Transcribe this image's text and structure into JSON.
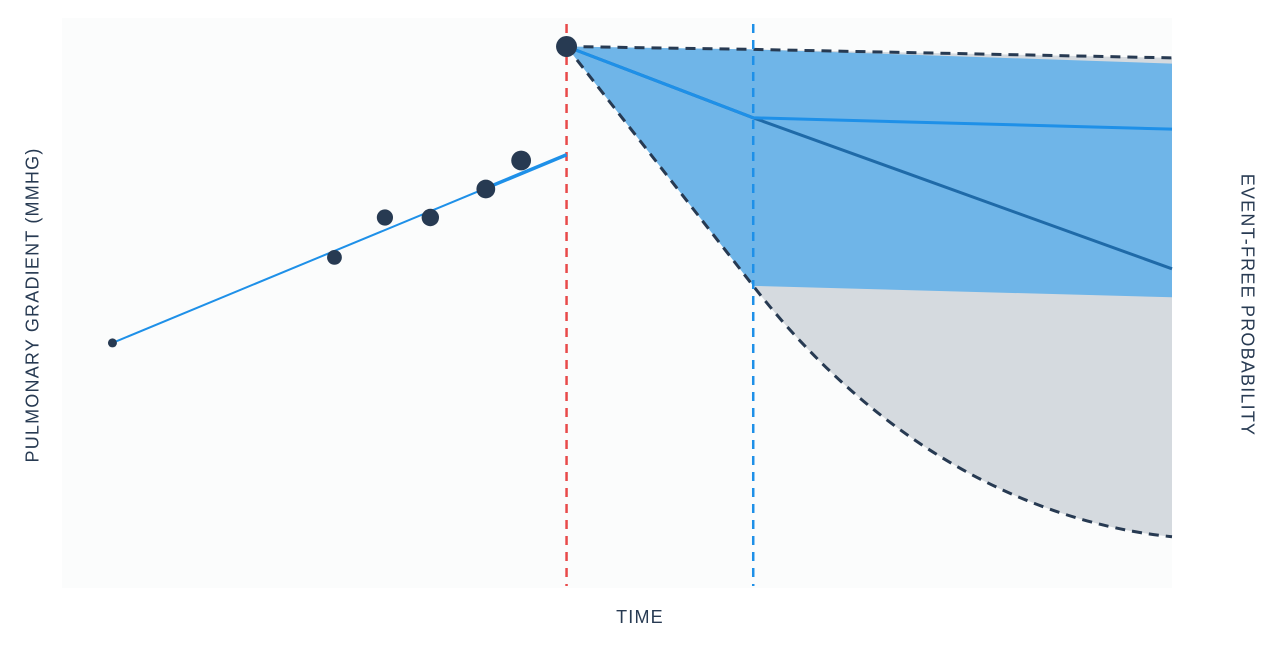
{
  "chart_data": {
    "type": "line",
    "title": "",
    "xlabel": "TIME",
    "ylabel": "PULMONARY GRADIENT (MMHG)",
    "ylabel_right": "EVENT-FREE PROBABILITY",
    "grid": false,
    "legend": "none",
    "colors": {
      "points": "#273a52",
      "fit_line": "#1e90e8",
      "band_fill": "#6fb5e8",
      "outer_fill": "#d5dadf",
      "bound_line": "#273a52",
      "mean_line": "#1f6aa8",
      "landmark_line": "#e84a4a",
      "horizon_line": "#1e90e8"
    },
    "observations": [
      {
        "x": 0.05,
        "y": 0.43
      },
      {
        "x": 0.27,
        "y": 0.58
      },
      {
        "x": 0.32,
        "y": 0.65
      },
      {
        "x": 0.365,
        "y": 0.65
      },
      {
        "x": 0.42,
        "y": 0.7
      },
      {
        "x": 0.455,
        "y": 0.75
      },
      {
        "x": 0.5,
        "y": 0.95
      }
    ],
    "fit_line": [
      {
        "x": 0.05,
        "y": 0.43
      },
      {
        "x": 0.5,
        "y": 0.76
      }
    ],
    "landmark_time": 0.5,
    "horizon_time": 0.685,
    "survival": {
      "x": [
        0.5,
        0.685,
        1.1
      ],
      "upper_bound": [
        0.95,
        0.945,
        0.93
      ],
      "lower_bound": [
        0.95,
        0.53,
        0.09
      ],
      "band_upper": [
        0.95,
        0.945,
        0.92
      ],
      "band_lower": [
        0.95,
        0.53,
        0.51
      ],
      "mean_line": [
        0.95,
        0.825,
        0.56
      ],
      "prediction_line": [
        0.95,
        0.825,
        0.805
      ]
    }
  }
}
